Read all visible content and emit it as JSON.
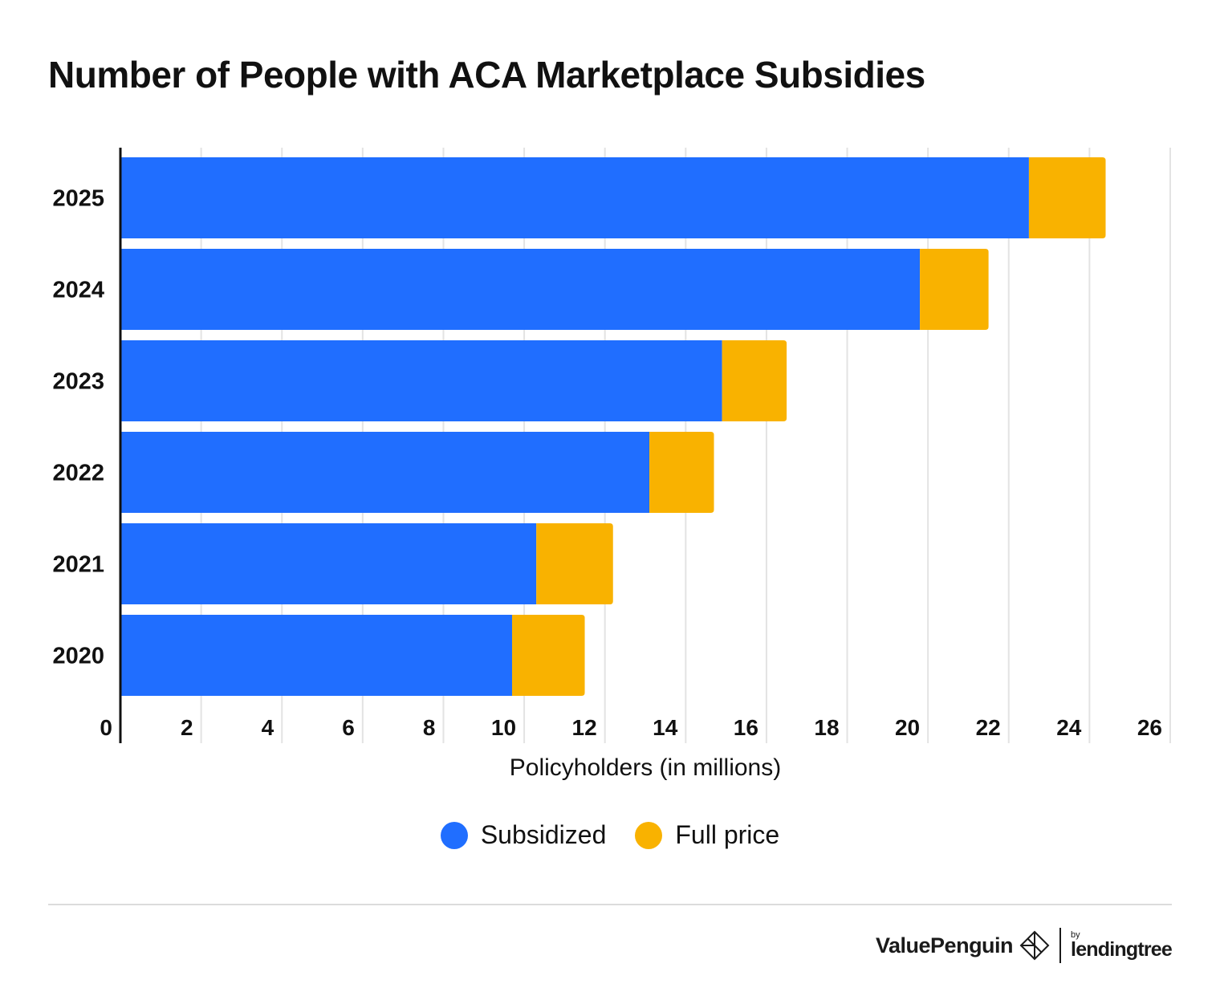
{
  "title": "Number of People with ACA Marketplace Subsidies",
  "chart_data": {
    "type": "bar",
    "orientation": "horizontal",
    "stacked": true,
    "categories": [
      "2025",
      "2024",
      "2023",
      "2022",
      "2021",
      "2020"
    ],
    "series": [
      {
        "name": "Subsidized",
        "color": "#206EFF",
        "values": [
          22.5,
          19.8,
          14.9,
          13.1,
          10.3,
          9.7
        ]
      },
      {
        "name": "Full price",
        "color": "#F9B200",
        "values": [
          1.9,
          1.7,
          1.6,
          1.6,
          1.9,
          1.8
        ]
      }
    ],
    "xlabel": "Policyholders (in millions)",
    "ylabel": "",
    "xlim": [
      0,
      26
    ],
    "xticks": [
      "0",
      "2",
      "4",
      "6",
      "8",
      "10",
      "12",
      "14",
      "16",
      "18",
      "20",
      "22",
      "24",
      "26"
    ],
    "grid": true,
    "legend_position": "bottom-center"
  },
  "branding": {
    "name": "ValuePenguin",
    "by": "by",
    "partner": "lendingtree",
    "logo_icon": "valuepenguin-diamond-icon"
  }
}
